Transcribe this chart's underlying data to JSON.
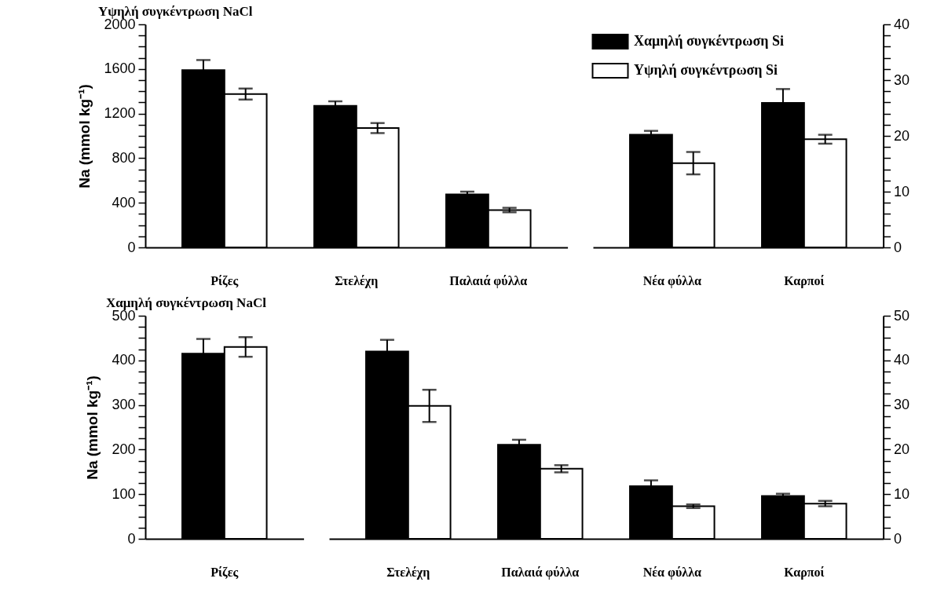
{
  "chart_data": [
    {
      "type": "bar",
      "title": "Υψηλή συγκέντρωση NaCl",
      "ylabel": "Na (mmol kg⁻¹)",
      "categories": [
        "Ρίζες",
        "Στελέχη",
        "Παλαιά φύλλα"
      ],
      "series": [
        {
          "color": "#000000",
          "values": [
            1590,
            1270,
            475
          ],
          "errors": [
            90,
            40,
            25
          ]
        },
        {
          "color": "#ffffff",
          "values": [
            1375,
            1070,
            335
          ],
          "errors": [
            50,
            45,
            20
          ]
        }
      ],
      "ylim": [
        0,
        2000
      ],
      "yticks": [
        0,
        {
          "value": 100,
          "label": null
        },
        {
          "value": 200,
          "label": null
        },
        {
          "value": 300,
          "label": null
        },
        400,
        {
          "value": 500,
          "label": null
        },
        {
          "value": 600,
          "label": null
        },
        {
          "value": 700,
          "label": null
        },
        800,
        {
          "value": 900,
          "label": null
        },
        {
          "value": 1000,
          "label": null
        },
        {
          "value": 1100,
          "label": null
        },
        1200,
        {
          "value": 1300,
          "label": null
        },
        {
          "value": 1400,
          "label": null
        },
        {
          "value": 1500,
          "label": null
        },
        1600,
        {
          "value": 1700,
          "label": null
        },
        {
          "value": 1800,
          "label": null
        },
        {
          "value": 1900,
          "label": null
        },
        2000
      ]
    },
    {
      "type": "bar",
      "categories": [
        "Νέα φύλλα",
        "Καρποί"
      ],
      "series": [
        {
          "name": "Χαμηλή συγκέντρωση Si",
          "color": "#000000",
          "axis": "y2",
          "values": [
            20.2,
            25.9
          ],
          "errors": [
            0.7,
            2.5
          ]
        },
        {
          "name": "Υψηλή συγκέντρωση Si",
          "color": "#ffffff",
          "axis": "y2",
          "values": [
            15.1,
            19.4
          ],
          "errors": [
            2.0,
            0.8
          ]
        }
      ],
      "y2lim": [
        0,
        40
      ],
      "y2ticks": [
        0,
        {
          "value": 2,
          "label": null
        },
        {
          "value": 4,
          "label": null
        },
        {
          "value": 6,
          "label": null
        },
        {
          "value": 8,
          "label": null
        },
        10,
        {
          "value": 12,
          "label": null
        },
        {
          "value": 14,
          "label": null
        },
        {
          "value": 16,
          "label": null
        },
        {
          "value": 18,
          "label": null
        },
        20,
        {
          "value": 22,
          "label": null
        },
        {
          "value": 24,
          "label": null
        },
        {
          "value": 26,
          "label": null
        },
        {
          "value": 28,
          "label": null
        },
        30,
        {
          "value": 32,
          "label": null
        },
        {
          "value": 34,
          "label": null
        },
        {
          "value": 36,
          "label": null
        },
        {
          "value": 38,
          "label": null
        },
        40
      ],
      "legend": "top left"
    },
    {
      "type": "bar",
      "title": "Χαμηλή συγκέντρωση NaCl",
      "ylabel": "Na (mmol kg⁻¹)",
      "categories": [
        "Ρίζες"
      ],
      "series": [
        {
          "color": "#000000",
          "values": [
            415
          ],
          "errors": [
            33
          ]
        },
        {
          "color": "#ffffff",
          "values": [
            430
          ],
          "errors": [
            22
          ]
        }
      ],
      "ylim": [
        0,
        500
      ],
      "yticks": [
        0,
        {
          "value": 25,
          "label": null
        },
        {
          "value": 50,
          "label": null
        },
        {
          "value": 75,
          "label": null
        },
        100,
        {
          "value": 125,
          "label": null
        },
        {
          "value": 150,
          "label": null
        },
        {
          "value": 175,
          "label": null
        },
        200,
        {
          "value": 225,
          "label": null
        },
        {
          "value": 250,
          "label": null
        },
        {
          "value": 275,
          "label": null
        },
        300,
        {
          "value": 325,
          "label": null
        },
        {
          "value": 350,
          "label": null
        },
        {
          "value": 375,
          "label": null
        },
        400,
        {
          "value": 425,
          "label": null
        },
        {
          "value": 450,
          "label": null
        },
        {
          "value": 475,
          "label": null
        },
        500
      ]
    },
    {
      "type": "bar",
      "categories": [
        "Στελέχη",
        "Παλαιά φύλλα",
        "Νέα φύλλα",
        "Καρποί"
      ],
      "series": [
        {
          "color": "#000000",
          "axis": "y2",
          "values": [
            42.0,
            21.1,
            11.8,
            9.6
          ],
          "errors": [
            2.6,
            1.1,
            1.3,
            0.5
          ]
        },
        {
          "color": "#ffffff",
          "axis": "y2",
          "values": [
            29.8,
            15.7,
            7.3,
            7.9
          ],
          "errors": [
            3.6,
            0.8,
            0.4,
            0.6
          ]
        }
      ],
      "y2lim": [
        0,
        50
      ],
      "y2ticks": [
        0,
        {
          "value": 2.5,
          "label": null
        },
        {
          "value": 5,
          "label": null
        },
        {
          "value": 7.5,
          "label": null
        },
        10,
        {
          "value": 12.5,
          "label": null
        },
        {
          "value": 15,
          "label": null
        },
        {
          "value": 17.5,
          "label": null
        },
        20,
        {
          "value": 22.5,
          "label": null
        },
        {
          "value": 25,
          "label": null
        },
        {
          "value": 27.5,
          "label": null
        },
        30,
        {
          "value": 32.5,
          "label": null
        },
        {
          "value": 35,
          "label": null
        },
        {
          "value": 37.5,
          "label": null
        },
        40,
        {
          "value": 42.5,
          "label": null
        },
        {
          "value": 45,
          "label": null
        },
        {
          "value": 47.5,
          "label": null
        },
        50
      ]
    }
  ]
}
